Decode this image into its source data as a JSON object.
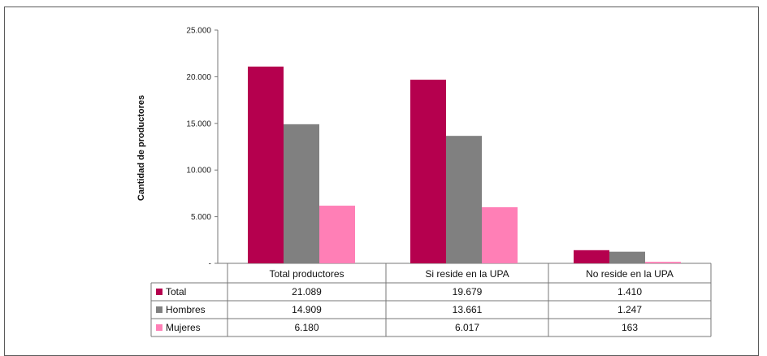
{
  "chart_data": {
    "type": "bar",
    "ylabel": "Cantidad de productores",
    "ylim": [
      0,
      25000
    ],
    "y_ticks": [
      {
        "value": 0,
        "label": "-"
      },
      {
        "value": 5000,
        "label": "5.000"
      },
      {
        "value": 10000,
        "label": "10.000"
      },
      {
        "value": 15000,
        "label": "15.000"
      },
      {
        "value": 20000,
        "label": "20.000"
      },
      {
        "value": 25000,
        "label": "25.000"
      }
    ],
    "categories": [
      "Total productores",
      "Si reside en la UPA",
      "No reside en la UPA"
    ],
    "series": [
      {
        "name": "Total",
        "color": "#b5004e",
        "values": [
          21089,
          19679,
          1410
        ],
        "labels": [
          "21.089",
          "19.679",
          "1.410"
        ]
      },
      {
        "name": "Hombres",
        "color": "#808080",
        "values": [
          14909,
          13661,
          1247
        ],
        "labels": [
          "14.909",
          "13.661",
          "1.247"
        ]
      },
      {
        "name": "Mujeres",
        "color": "#ff7fb6",
        "values": [
          6180,
          6017,
          163
        ],
        "labels": [
          "6.180",
          "6.017",
          "163"
        ]
      }
    ],
    "grid": false,
    "legend": "data-table"
  }
}
